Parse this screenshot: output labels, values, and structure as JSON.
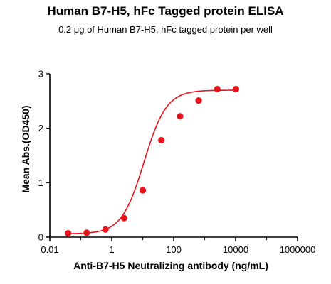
{
  "chart_data": {
    "type": "scatter",
    "title": "Human B7-H5, hFc Tagged protein ELISA",
    "subtitle": "0.2 μg of Human B7-H5, hFc tagged protein per well",
    "xlabel": "Anti-B7-H5 Neutralizing antibody (ng/mL)",
    "ylabel": "Mean Abs.(OD450)",
    "x_scale": "log",
    "xlim": [
      0.01,
      1000000
    ],
    "ylim": [
      0,
      3
    ],
    "x_ticks": [
      "0.01",
      "1",
      "100",
      "10000",
      "1000000"
    ],
    "y_ticks": [
      "0",
      "1",
      "2",
      "3"
    ],
    "grid": false,
    "series": [
      {
        "color": "#e8141b",
        "x": [
          0.039,
          0.156,
          0.625,
          2.5,
          10,
          40,
          160,
          640,
          2560,
          10240
        ],
        "y": [
          0.07,
          0.08,
          0.14,
          0.35,
          0.86,
          1.78,
          2.22,
          2.51,
          2.72,
          2.72
        ]
      }
    ],
    "fit_curve": {
      "color": "#e8141b",
      "bottom": 0.06,
      "top": 2.7,
      "ec50": 11,
      "hill": 1.2
    }
  }
}
